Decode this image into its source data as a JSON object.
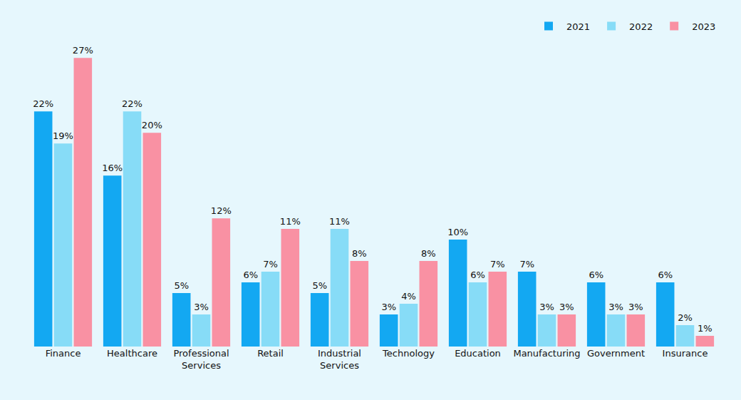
{
  "chart_data": {
    "type": "bar",
    "categories": [
      "Finance",
      "Healthcare",
      "Professional Services",
      "Retail",
      "Industrial Services",
      "Technology",
      "Education",
      "Manufacturing",
      "Government",
      "Insurance"
    ],
    "series": [
      {
        "name": "2021",
        "color": "#13a8f2",
        "values": [
          22,
          16,
          5,
          6,
          5,
          3,
          10,
          7,
          6,
          6
        ],
        "value_labels": [
          "22%",
          "16%",
          "5%",
          "6%",
          "5%",
          "3%",
          "10%",
          "7%",
          "6%",
          "6%"
        ]
      },
      {
        "name": "2022",
        "color": "#87dcf7",
        "values": [
          19,
          22,
          3,
          7,
          11,
          4,
          6,
          3,
          3,
          2
        ],
        "value_labels": [
          "19%",
          "22%",
          "3%",
          "7%",
          "11%",
          "4%",
          "6%",
          "3%",
          "3%",
          "2%"
        ]
      },
      {
        "name": "2023",
        "color": "#f991a3",
        "values": [
          27,
          20,
          12,
          11,
          8,
          8,
          7,
          3,
          3,
          1
        ],
        "value_labels": [
          "27%",
          "20%",
          "12%",
          "11%",
          "8%",
          "8%",
          "7%",
          "3%",
          "3%",
          "1%"
        ]
      }
    ],
    "data_labels": true,
    "tick_labels": "x",
    "grid": false,
    "legend": "top-right"
  }
}
